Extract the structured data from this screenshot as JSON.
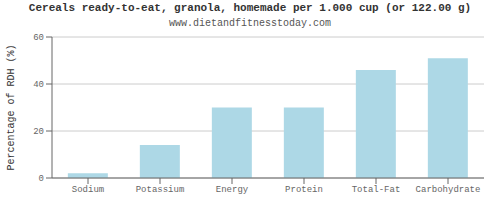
{
  "chart_data": {
    "type": "bar",
    "title": "Cereals ready-to-eat, granola, homemade per 1.000 cup (or 122.00 g)",
    "subtitle": "www.dietandfitnesstoday.com",
    "categories": [
      "Sodium",
      "Potassium",
      "Energy",
      "Protein",
      "Total-Fat",
      "Carbohydrate"
    ],
    "values": [
      2,
      14,
      30,
      30,
      46,
      51
    ],
    "color": "#add8e6",
    "ylabel": "Percentage of RDH (%)",
    "ylim": [
      0,
      60
    ],
    "yticks": [
      0,
      20,
      40,
      60
    ],
    "grid": true
  }
}
